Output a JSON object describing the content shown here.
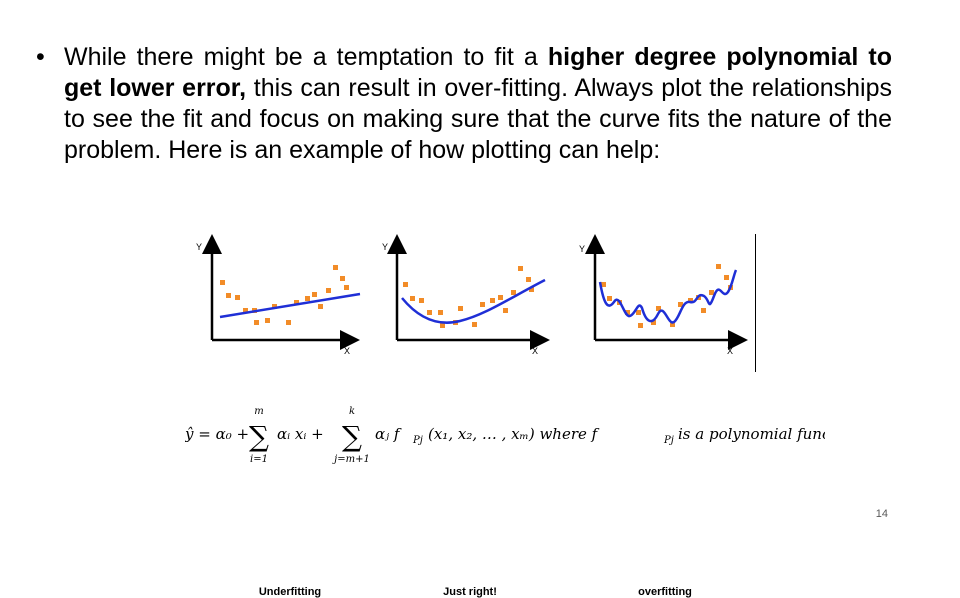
{
  "bullet": {
    "dot": "•",
    "part1": "While there might be a temptation to fit a ",
    "bold": "higher degree polynomial to get lower error,",
    "part2": " this can result in over-fitting. Always plot the relationships to see the fit and focus on making sure that the curve fits the nature of the problem. Here is an example of how plotting can help:"
  },
  "figure": {
    "axis_y": "Y",
    "axis_x": "X",
    "panels": [
      {
        "caption": "Underfitting"
      },
      {
        "caption": "Just right!"
      },
      {
        "caption": "overfitting"
      }
    ],
    "point_color": "#f28c28",
    "curve_color": "#1f2fd6"
  },
  "formula": {
    "lhs": "ŷ = α₀ +",
    "sum1_top": "m",
    "sum1_bottom": "i=1",
    "term1": "αᵢ xᵢ +",
    "sum2_top": "k",
    "sum2_bottom": "j=m+1",
    "term2": "αⱼ f",
    "term2_sub": "Pj",
    "term2_args": "(x₁, x₂, … , xₘ) where f",
    "tail": " is a polynomial function"
  },
  "page_number": "14"
}
